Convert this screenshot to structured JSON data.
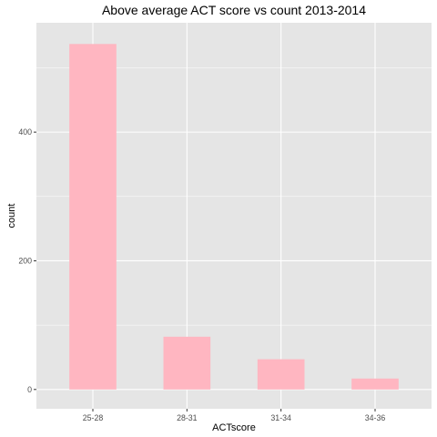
{
  "chart_data": {
    "type": "bar",
    "title": "Above average ACT score vs count 2013-2014",
    "xlabel": "ACTscore",
    "ylabel": "count",
    "categories": [
      "25-28",
      "28-31",
      "31-34",
      "34-36"
    ],
    "values": [
      537,
      82,
      47,
      17
    ],
    "ylim": [
      -30,
      570
    ],
    "yticks": [
      0,
      200,
      400
    ],
    "grid": true,
    "legend": "none",
    "colors": {
      "bar": "#ffb6c1",
      "panel": "#e5e5e5",
      "grid_major": "#ffffff",
      "tick_text": "#4d4d4d"
    }
  }
}
